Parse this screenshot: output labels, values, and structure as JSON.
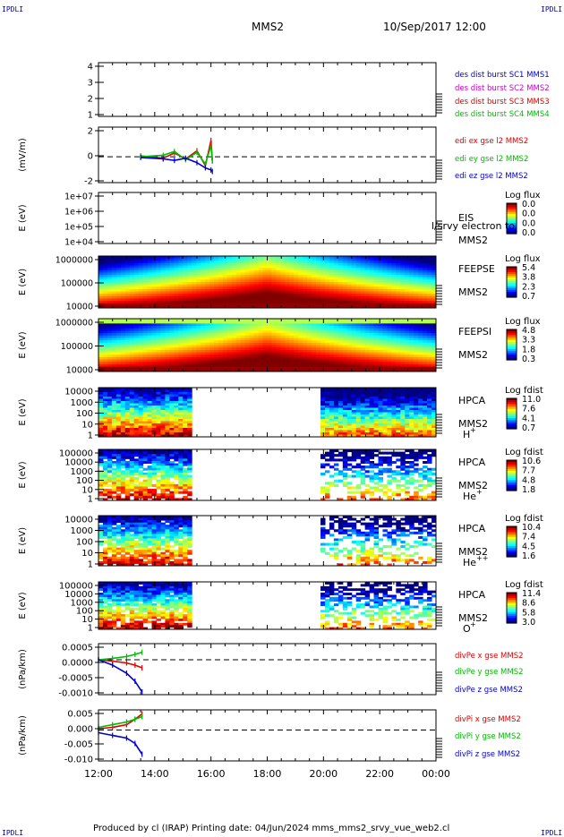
{
  "header": {
    "corner_label": "IPDLI",
    "spacecraft": "MMS2",
    "datetime": "10/Sep/2017 12:00"
  },
  "footer": {
    "text": "Produced by cl (IRAP)   Printing date: 04/Jun/2024   mms_mms2_srvy_vue_web2.cl"
  },
  "colors": {
    "blue": "#0000cc",
    "magenta": "#cc00cc",
    "red": "#dd0000",
    "green": "#00bb00"
  },
  "x_axis": {
    "ticks": [
      "12:00",
      "14:00",
      "16:00",
      "18:00",
      "20:00",
      "22:00",
      "00:00"
    ],
    "range_hours": [
      12,
      24
    ]
  },
  "chart_data": [
    {
      "id": "burst",
      "type": "line",
      "yticks": [
        "1",
        "2",
        "3",
        "4"
      ],
      "ylim": [
        0.7,
        4.5
      ],
      "series": [
        {
          "name": "des dist burst SC1 MMS1",
          "color": "#0000cc",
          "values": []
        },
        {
          "name": "des dist burst SC2 MMS2",
          "color": "#cc00cc",
          "values": []
        },
        {
          "name": "des dist burst SC3 MMS3",
          "color": "#dd0000",
          "values": []
        },
        {
          "name": "des dist burst SC4 MMS4",
          "color": "#00bb00",
          "values": []
        }
      ]
    },
    {
      "id": "edi",
      "type": "line",
      "ylabel": "(mV/m)",
      "yticks": [
        "-2",
        "0",
        "2"
      ],
      "ylim": [
        -3.5,
        4
      ],
      "dashed_zero": true,
      "series": [
        {
          "name": "edi ex gse l2 MMS2",
          "color": "#dd0000",
          "x": [
            13.5,
            14.3,
            14.7,
            15.1,
            15.5,
            15.8,
            16.0,
            16.05
          ],
          "values": [
            0.1,
            -0.2,
            0.5,
            -0.3,
            0.8,
            -1.2,
            2.2,
            -0.5
          ]
        },
        {
          "name": "edi ey gse l2 MMS2",
          "color": "#00bb00",
          "x": [
            13.5,
            14.3,
            14.7,
            15.1,
            15.5,
            15.8,
            16.0,
            16.05
          ],
          "values": [
            0.0,
            0.2,
            0.7,
            -0.4,
            0.6,
            -1.0,
            1.5,
            -0.6
          ]
        },
        {
          "name": "edi ez gse l2 MMS2",
          "color": "#0000cc",
          "x": [
            13.5,
            14.3,
            14.7,
            15.1,
            15.5,
            15.8,
            16.0,
            16.05
          ],
          "values": [
            -0.1,
            -0.3,
            -0.5,
            -0.2,
            -0.8,
            -1.5,
            -1.8,
            -2.0
          ]
        }
      ]
    },
    {
      "id": "eis",
      "type": "heatmap",
      "ylabel": "E (eV)",
      "yticks": [
        "1e+04",
        "1e+05",
        "1e+06",
        "1e+07"
      ],
      "instrument": "EIS",
      "extra_label": "l/srvy electron to",
      "sc_label": "MMS2",
      "colorbar_title": "Log flux",
      "colorbar_ticks": [
        "0.0",
        "0.0",
        "0.0",
        "0.0"
      ]
    },
    {
      "id": "feepse",
      "type": "heatmap",
      "ylabel": "E (eV)",
      "yticks": [
        "10000",
        "100000",
        "1000000"
      ],
      "instrument": "FEEPSE",
      "sc_label": "MMS2",
      "colorbar_title": "Log flux",
      "colorbar_ticks": [
        "5.4",
        "3.8",
        "2.3",
        "0.7"
      ]
    },
    {
      "id": "feepsi",
      "type": "heatmap",
      "ylabel": "E (eV)",
      "yticks": [
        "10000",
        "100000",
        "1000000"
      ],
      "instrument": "FEEPSI",
      "sc_label": "MMS2",
      "colorbar_title": "Log flux",
      "colorbar_ticks": [
        "4.8",
        "3.3",
        "1.8",
        "0.3"
      ]
    },
    {
      "id": "hpca_h",
      "type": "heatmap",
      "ylabel": "E (eV)",
      "yticks": [
        "1",
        "10",
        "100",
        "1000",
        "10000"
      ],
      "instrument": "HPCA",
      "sc_label": "MMS2",
      "species": "H",
      "species_sup": "+",
      "colorbar_title": "Log fdist",
      "colorbar_ticks": [
        "11.0",
        "7.6",
        "4.1",
        "0.7"
      ]
    },
    {
      "id": "hpca_he1",
      "type": "heatmap",
      "ylabel": "E (eV)",
      "yticks": [
        "1",
        "10",
        "100",
        "1000",
        "10000",
        "100000"
      ],
      "instrument": "HPCA",
      "sc_label": "MMS2",
      "species": "He",
      "species_sup": "+",
      "colorbar_title": "Log fdist",
      "colorbar_ticks": [
        "10.6",
        "7.7",
        "4.8",
        "1.8"
      ]
    },
    {
      "id": "hpca_he2",
      "type": "heatmap",
      "ylabel": "E (eV)",
      "yticks": [
        "1",
        "10",
        "100",
        "1000",
        "10000"
      ],
      "instrument": "HPCA",
      "sc_label": "MMS2",
      "species": "He",
      "species_sup": "++",
      "colorbar_title": "Log fdist",
      "colorbar_ticks": [
        "10.4",
        "7.4",
        "4.5",
        "1.6"
      ]
    },
    {
      "id": "hpca_o",
      "type": "heatmap",
      "ylabel": "E (eV)",
      "yticks": [
        "1",
        "10",
        "100",
        "1000",
        "10000",
        "100000"
      ],
      "instrument": "HPCA",
      "sc_label": "MMS2",
      "species": "O",
      "species_sup": "+",
      "colorbar_title": "Log fdist",
      "colorbar_ticks": [
        "11.4",
        "8.6",
        "5.8",
        "3.0"
      ]
    },
    {
      "id": "divpe",
      "type": "line",
      "ylabel": "(nPa/km)",
      "yticks": [
        "-0.0010",
        "-0.0005",
        "0.0000",
        "0.0005"
      ],
      "ylim": [
        -0.0013,
        0.0006
      ],
      "dashed_zero": true,
      "series": [
        {
          "name": "divPe x gse MMS2",
          "color": "#dd0000",
          "x": [
            12.0,
            12.5,
            13.0,
            13.3,
            13.55
          ],
          "values": [
            0.0,
            -5e-05,
            -0.00012,
            -0.0002,
            -0.0003
          ]
        },
        {
          "name": "divPe y gse MMS2",
          "color": "#00bb00",
          "x": [
            12.0,
            12.5,
            13.0,
            13.3,
            13.55
          ],
          "values": [
            0.0,
            5e-05,
            0.00012,
            0.0002,
            0.00028
          ]
        },
        {
          "name": "divPe z gse MMS2",
          "color": "#0000cc",
          "x": [
            12.0,
            12.5,
            13.0,
            13.3,
            13.55
          ],
          "values": [
            0.0,
            -0.0002,
            -0.0005,
            -0.0008,
            -0.0012
          ]
        }
      ]
    },
    {
      "id": "divpi",
      "type": "line",
      "ylabel": "(nPa/km)",
      "yticks": [
        "-0.010",
        "-0.005",
        "0.000",
        "0.005"
      ],
      "ylim": [
        -0.0115,
        0.0075
      ],
      "dashed_zero": true,
      "series": [
        {
          "name": "divPi x gse MMS2",
          "color": "#dd0000",
          "x": [
            12.0,
            12.5,
            13.0,
            13.3,
            13.55
          ],
          "values": [
            0.0005,
            0.001,
            0.002,
            0.004,
            0.006
          ]
        },
        {
          "name": "divPi y gse MMS2",
          "color": "#00bb00",
          "x": [
            12.0,
            12.5,
            13.0,
            13.3,
            13.55
          ],
          "values": [
            0.001,
            0.002,
            0.003,
            0.004,
            0.005
          ]
        },
        {
          "name": "divPi z gse MMS2",
          "color": "#0000cc",
          "x": [
            12.0,
            12.5,
            13.0,
            13.3,
            13.55
          ],
          "values": [
            -0.001,
            -0.002,
            -0.003,
            -0.005,
            -0.009
          ]
        }
      ]
    }
  ]
}
